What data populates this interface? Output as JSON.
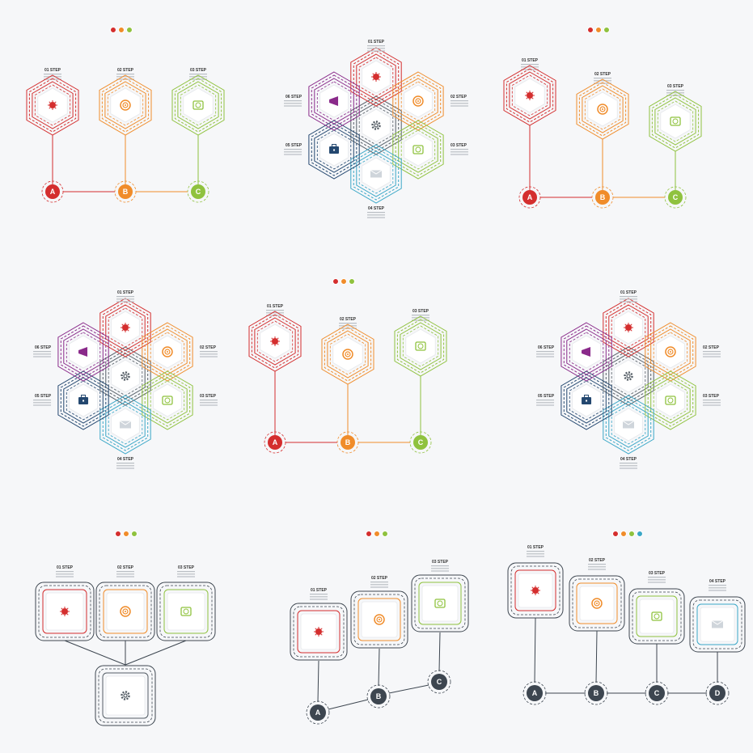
{
  "colors": {
    "red": "#d42e2e",
    "orange": "#f08c2a",
    "green": "#8fc23e",
    "purple": "#8a2a8a",
    "navy": "#23476f",
    "teal": "#3aa7c7",
    "gray": "#555e66",
    "dark": "#3d4650"
  },
  "panels": [
    {
      "id": "p1",
      "dots": 3,
      "steps": [
        "01 STEP",
        "02 STEP",
        "03 STEP"
      ],
      "nodes": [
        "A",
        "B",
        "C"
      ]
    },
    {
      "id": "p2",
      "dots": 0,
      "steps": [
        "01 STEP",
        "02 STEP",
        "03 STEP",
        "04 STEP",
        "05 STEP",
        "06 STEP"
      ]
    },
    {
      "id": "p3",
      "dots": 3,
      "steps": [
        "01 STEP",
        "02 STEP",
        "03 STEP"
      ],
      "nodes": [
        "A",
        "B",
        "C"
      ]
    },
    {
      "id": "p4",
      "dots": 0,
      "steps": [
        "01 STEP",
        "02 STEP",
        "03 STEP",
        "04 STEP",
        "05 STEP",
        "06 STEP"
      ]
    },
    {
      "id": "p5",
      "dots": 3,
      "steps": [
        "01 STEP",
        "02 STEP",
        "03 STEP"
      ],
      "nodes": [
        "A",
        "B",
        "C"
      ]
    },
    {
      "id": "p6",
      "dots": 0,
      "steps": [
        "01 STEP",
        "02 STEP",
        "03 STEP",
        "04 STEP",
        "05 STEP",
        "06 STEP"
      ]
    },
    {
      "id": "p7",
      "dots": 3,
      "steps": [
        "01 STEP",
        "02 STEP",
        "03 STEP"
      ]
    },
    {
      "id": "p8",
      "dots": 3,
      "steps": [
        "01 STEP",
        "02 STEP",
        "03 STEP"
      ],
      "nodes": [
        "A",
        "B",
        "C"
      ]
    },
    {
      "id": "p9",
      "dots": 4,
      "steps": [
        "01 STEP",
        "02 STEP",
        "03 STEP",
        "04 STEP"
      ],
      "nodes": [
        "A",
        "B",
        "C",
        "D"
      ]
    }
  ],
  "icons": [
    "bug-icon",
    "target-icon",
    "alarm-clock-icon",
    "envelope-icon",
    "briefcase-icon",
    "megaphone-icon",
    "gear-icon"
  ]
}
